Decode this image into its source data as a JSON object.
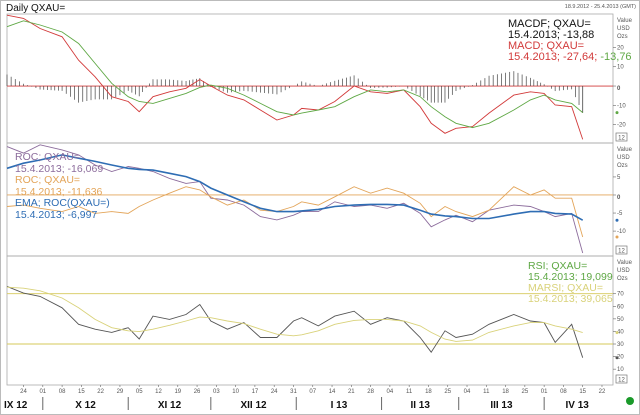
{
  "title": "Daily QXAU=",
  "date_range": "18.9.2012 - 25.4.2013 (GMT)",
  "axis_unit_lines": [
    "Value",
    "USD",
    "Ozs"
  ],
  "axis_box_label": "12",
  "colors": {
    "macd": "#d23a3a",
    "signal": "#5fa845",
    "histogram": "#444444",
    "roc_purple": "#8c6c9c",
    "roc_orange": "#e3a55a",
    "ema": "#2e6db4",
    "rsi": "#555555",
    "marsi": "#d9d27a",
    "rsi_bands": "#d6c95a",
    "status_dot": "#1a9a2a"
  },
  "chart_data": [
    {
      "type": "line",
      "panel": "MACD",
      "ylim": [
        -29.5,
        37.3
      ],
      "yticks": [
        20,
        10,
        0,
        -10,
        -20
      ],
      "legend": [
        {
          "text": "MACDF; QXAU=",
          "color_key": "histogram"
        },
        {
          "text": "15.4.2013; -13,88",
          "color_key": "histogram"
        },
        {
          "text": "MACD; QXAU=",
          "color_key": "macd"
        },
        {
          "text": "15.4.2013; -27,64; ",
          "color_key": "macd",
          "extra": "-13,76",
          "extra_color_key": "signal"
        }
      ],
      "legend_placement": "top-right",
      "x": [
        "2012-09-18",
        "2012-09-24",
        "2012-09-30",
        "2012-10-08",
        "2012-10-14",
        "2012-10-20",
        "2012-10-26",
        "2012-11-01",
        "2012-11-05",
        "2012-11-10",
        "2012-11-16",
        "2012-11-22",
        "2012-11-27",
        "2012-12-01",
        "2012-12-07",
        "2012-12-13",
        "2012-12-19",
        "2012-12-25",
        "2012-12-31",
        "2013-01-03",
        "2013-01-09",
        "2013-01-15",
        "2013-01-22",
        "2013-01-28",
        "2013-02-03",
        "2013-02-09",
        "2013-02-15",
        "2013-02-19",
        "2013-02-24",
        "2013-02-28",
        "2013-03-06",
        "2013-03-12",
        "2013-03-21",
        "2013-03-27",
        "2013-04-01",
        "2013-04-05",
        "2013-04-11",
        "2013-04-15"
      ],
      "series": [
        {
          "name": "MACD; QXAU=",
          "color_key": "macd",
          "style": "line",
          "values": [
            36.7,
            35,
            29.8,
            25.5,
            13.4,
            4.8,
            -5.5,
            -8,
            -13.3,
            -5.5,
            -3,
            -1.2,
            3.4,
            0,
            -4.7,
            -7.2,
            -12.4,
            -17.6,
            -15,
            -11.6,
            -12.4,
            -8,
            0,
            -3,
            -3.8,
            -2,
            -10.7,
            -19.3,
            -24.5,
            -21.9,
            -21,
            -14,
            -4.7,
            -3,
            -3.8,
            -9.8,
            -10.7,
            -27.64
          ]
        },
        {
          "name": "signal",
          "color_key": "signal",
          "style": "line",
          "values": [
            30.7,
            33.8,
            31.6,
            28,
            22,
            11.7,
            1.4,
            -5.5,
            -8,
            -9,
            -6.4,
            -3.8,
            -0.7,
            0.5,
            -1.2,
            -4.7,
            -9,
            -13.3,
            -15,
            -14,
            -12.4,
            -10.7,
            -5.5,
            -2,
            -3,
            -2,
            -5.5,
            -10.7,
            -15.9,
            -19.3,
            -21.5,
            -19.3,
            -12.4,
            -7.2,
            -4.7,
            -7.2,
            -9,
            -13.76
          ]
        },
        {
          "name": "MACDF; QXAU=",
          "color_key": "histogram",
          "style": "histogram",
          "derived": "MACD minus signal"
        }
      ],
      "reference_lines": [
        {
          "value": 0,
          "color_key": "macd"
        }
      ]
    },
    {
      "type": "line",
      "panel": "ROC",
      "ylim": [
        -16.9,
        14.4
      ],
      "yticks": [
        5,
        0,
        -5,
        -10
      ],
      "legend": [
        {
          "text": "ROC; QXAU=",
          "color_key": "roc_purple"
        },
        {
          "text": "15.4.2013; -16,069",
          "color_key": "roc_purple"
        },
        {
          "text": "ROC; QXAU=",
          "color_key": "roc_orange"
        },
        {
          "text": "15.4.2013; -11,636",
          "color_key": "roc_orange"
        },
        {
          "text": "EMA; ROC(QXAU=)",
          "color_key": "ema"
        },
        {
          "text": "15.4.2013; -6,997",
          "color_key": "ema"
        }
      ],
      "legend_placement": "top-left",
      "series": [
        {
          "name": "ROC; QXAU=",
          "color_key": "roc_purple",
          "values": [
            13.4,
            11.6,
            13.9,
            12.5,
            11.1,
            8.3,
            6.5,
            7.9,
            7.4,
            6.5,
            4.6,
            3.2,
            3.7,
            -0.9,
            -1.4,
            -2.8,
            -6,
            -6.9,
            -5.6,
            -4.6,
            -4.6,
            -1.9,
            -3.2,
            -2.8,
            -3.7,
            -2.3,
            -5.1,
            -8.8,
            -6.9,
            -5.6,
            -7.4,
            -4.2,
            -2.8,
            -3.2,
            -4.6,
            -6,
            -5.1,
            -16.069
          ]
        },
        {
          "name": "ROC; QXAU=",
          "color_key": "roc_orange",
          "values": [
            -3.2,
            -2.8,
            -3.7,
            -4.6,
            -3.2,
            -5.1,
            -4.6,
            -5.1,
            -3.2,
            -1.4,
            0.5,
            2.3,
            1.4,
            -0.5,
            -2.8,
            -1.4,
            -4.2,
            -4.6,
            -3.2,
            -1.9,
            -2.8,
            -0.5,
            2.3,
            0.5,
            1.9,
            0.5,
            -2.3,
            -6,
            -3.2,
            -4.6,
            -6,
            -4.2,
            2.3,
            0,
            1.4,
            -0.9,
            -0.9,
            -11.636
          ]
        },
        {
          "name": "EMA; ROC(QXAU=)",
          "color_key": "ema",
          "values": [
            7.4,
            8.8,
            9.7,
            11.1,
            10.2,
            9.3,
            8.3,
            7.4,
            7.1,
            6.9,
            6,
            5.1,
            3.7,
            1.9,
            0,
            -1.9,
            -3.7,
            -4.6,
            -4.6,
            -4.4,
            -4,
            -3.2,
            -2.8,
            -2.6,
            -2.6,
            -2.8,
            -4.2,
            -5.3,
            -5.8,
            -6,
            -6.5,
            -6.5,
            -5.3,
            -4.6,
            -4.6,
            -5.1,
            -5.3,
            -6.997
          ]
        }
      ],
      "reference_lines": [
        {
          "value": 0,
          "color_key": "roc_orange"
        }
      ]
    },
    {
      "type": "line",
      "panel": "RSI",
      "ylim": [
        -2.6,
        100
      ],
      "yticks": [
        70,
        60,
        50,
        40,
        30,
        20,
        10
      ],
      "legend": [
        {
          "text": "RSI; QXAU=",
          "color_key": "signal"
        },
        {
          "text": "15.4.2013; 19,099",
          "color_key": "signal"
        },
        {
          "text": "MARSI; QXAU=",
          "color_key": "marsi"
        },
        {
          "text": "15.4.2013; 39,065",
          "color_key": "marsi"
        }
      ],
      "legend_placement": "top-right",
      "series": [
        {
          "name": "RSI; QXAU=",
          "color_key": "rsi",
          "values": [
            75.8,
            70.5,
            67.9,
            58.8,
            45.7,
            41.8,
            39.2,
            43,
            34,
            52.2,
            49.6,
            53.5,
            61.4,
            48.3,
            41.8,
            47,
            35.2,
            35.2,
            48.3,
            50.9,
            44.4,
            52.2,
            56.1,
            45.7,
            50.9,
            48.3,
            35.2,
            23.5,
            40.5,
            35.2,
            37.8,
            45.7,
            53.5,
            48.3,
            47,
            31.3,
            45.7,
            19.099
          ]
        },
        {
          "name": "MARSI; QXAU=",
          "color_key": "marsi",
          "values": [
            75.2,
            74.4,
            72.3,
            66.6,
            58.8,
            49.6,
            43,
            40.5,
            39.9,
            41.8,
            44.9,
            48.3,
            51.4,
            50.9,
            48.3,
            46.2,
            41.8,
            37.8,
            36.5,
            37.3,
            40.5,
            45.7,
            48.8,
            49.6,
            49.6,
            48.3,
            44.4,
            39.2,
            33.9,
            32.1,
            33.1,
            39.2,
            44.4,
            47,
            47,
            44.4,
            41.8,
            39.065
          ]
        }
      ],
      "reference_lines": [
        {
          "value": 70,
          "color_key": "rsi_bands"
        },
        {
          "value": 30,
          "color_key": "rsi_bands"
        }
      ]
    }
  ],
  "x_axis": {
    "range": [
      "2012-09-18",
      "2013-04-25"
    ],
    "ticks": [
      {
        "date": "2012-09-24",
        "label": "24"
      },
      {
        "date": "2012-10-01",
        "label": "01"
      },
      {
        "date": "2012-10-08",
        "label": "08"
      },
      {
        "date": "2012-10-15",
        "label": "15"
      },
      {
        "date": "2012-10-22",
        "label": "22"
      },
      {
        "date": "2012-10-29",
        "label": "29"
      },
      {
        "date": "2012-11-05",
        "label": "05"
      },
      {
        "date": "2012-11-12",
        "label": "12"
      },
      {
        "date": "2012-11-19",
        "label": "19"
      },
      {
        "date": "2012-11-26",
        "label": "26"
      },
      {
        "date": "2012-12-03",
        "label": "03"
      },
      {
        "date": "2012-12-10",
        "label": "10"
      },
      {
        "date": "2012-12-17",
        "label": "17"
      },
      {
        "date": "2012-12-24",
        "label": "24"
      },
      {
        "date": "2012-12-31",
        "label": "31"
      },
      {
        "date": "2013-01-07",
        "label": "07"
      },
      {
        "date": "2013-01-14",
        "label": "14"
      },
      {
        "date": "2013-01-21",
        "label": "21"
      },
      {
        "date": "2013-01-28",
        "label": "28"
      },
      {
        "date": "2013-02-04",
        "label": "04"
      },
      {
        "date": "2013-02-11",
        "label": "11"
      },
      {
        "date": "2013-02-18",
        "label": "18"
      },
      {
        "date": "2013-02-25",
        "label": "25"
      },
      {
        "date": "2013-03-04",
        "label": "04"
      },
      {
        "date": "2013-03-11",
        "label": "11"
      },
      {
        "date": "2013-03-18",
        "label": "18"
      },
      {
        "date": "2013-03-25",
        "label": "25"
      },
      {
        "date": "2013-04-01",
        "label": "01"
      },
      {
        "date": "2013-04-08",
        "label": "08"
      },
      {
        "date": "2013-04-15",
        "label": "15"
      },
      {
        "date": "2013-04-22",
        "label": "22"
      }
    ],
    "months": [
      {
        "start": "2012-09-18",
        "end": "2012-10-01",
        "label": "IX 12"
      },
      {
        "start": "2012-10-01",
        "end": "2012-11-01",
        "label": "X 12"
      },
      {
        "start": "2012-11-01",
        "end": "2012-12-01",
        "label": "XI 12"
      },
      {
        "start": "2012-12-01",
        "end": "2013-01-01",
        "label": "XII 12"
      },
      {
        "start": "2013-01-01",
        "end": "2013-02-01",
        "label": "I 13"
      },
      {
        "start": "2013-02-01",
        "end": "2013-03-01",
        "label": "II 13"
      },
      {
        "start": "2013-03-01",
        "end": "2013-04-01",
        "label": "III 13"
      },
      {
        "start": "2013-04-01",
        "end": "2013-04-25",
        "label": "IV 13"
      }
    ]
  }
}
